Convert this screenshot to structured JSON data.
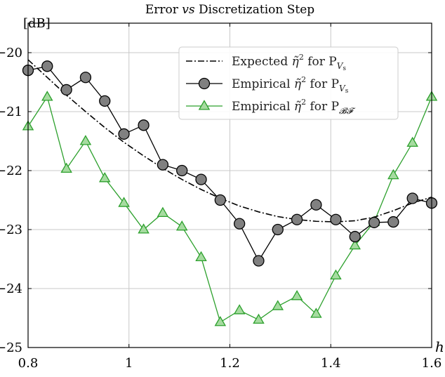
{
  "chart_data": {
    "type": "line",
    "title_parts": {
      "before": "Error ",
      "italic": "vs",
      "after": " Discretization Step"
    },
    "xlabel": "h",
    "ylabel": "[dB]",
    "xlim": [
      0.8,
      1.6
    ],
    "ylim": [
      -25,
      -19.5
    ],
    "grid": true,
    "legend_position": "top-right",
    "x_ticks": [
      0.8,
      1.0,
      1.2,
      1.4,
      1.6
    ],
    "x_tick_labels": [
      "0.8",
      "1",
      "1.2",
      "1.4",
      "1.6"
    ],
    "y_ticks": [
      -20,
      -21,
      -22,
      -23,
      -24,
      -25
    ],
    "y_tick_labels": [
      "−20",
      "−21",
      "−22",
      "−23",
      "−24",
      "−25"
    ],
    "x": [
      0.8,
      0.838,
      0.876,
      0.914,
      0.952,
      0.99,
      1.029,
      1.067,
      1.105,
      1.143,
      1.181,
      1.219,
      1.257,
      1.295,
      1.333,
      1.371,
      1.41,
      1.448,
      1.486,
      1.524,
      1.562,
      1.6
    ],
    "series": [
      {
        "name": "Expected η̃² for P_Vs",
        "legend_label": {
          "prefix": "Expected ",
          "eta": "η̃",
          "sup": "2",
          "mid": " for P",
          "sub": "Vs",
          "sub_kind": "V",
          "sub_small": "s"
        },
        "style": "dashdot",
        "color": "#000000",
        "marker": "none",
        "values": [
          -20.12,
          -20.42,
          -20.72,
          -21.0,
          -21.27,
          -21.52,
          -21.75,
          -21.96,
          -22.15,
          -22.32,
          -22.47,
          -22.6,
          -22.7,
          -22.78,
          -22.83,
          -22.86,
          -22.87,
          -22.85,
          -22.79,
          -22.68,
          -22.55,
          -22.45
        ]
      },
      {
        "name": "Empirical η̃² for P_Vs",
        "legend_label": {
          "prefix": "Empirical ",
          "eta": "η̃",
          "sup": "2",
          "mid": " for P",
          "sub": "Vs",
          "sub_kind": "V",
          "sub_small": "s"
        },
        "style": "solid",
        "color": "#000000",
        "marker": "circle",
        "marker_fill": "#808080",
        "values": [
          -20.3,
          -20.23,
          -20.63,
          -20.42,
          -20.82,
          -21.38,
          -21.23,
          -21.9,
          -22.0,
          -22.15,
          -22.5,
          -22.9,
          -23.53,
          -23.0,
          -22.83,
          -22.58,
          -22.83,
          -23.12,
          -22.88,
          -22.87,
          -22.47,
          -22.55
        ]
      },
      {
        "name": "Empirical η̃² for P_BF",
        "legend_label": {
          "prefix": "Empirical ",
          "eta": "η̃",
          "sup": "2",
          "mid": " for P",
          "sub": "𝓑𝓕",
          "sub_kind": "BF",
          "sub_small": ""
        },
        "style": "solid",
        "color": "#2ca02c",
        "marker": "triangle",
        "marker_fill": "#a6dba0",
        "values": [
          -21.25,
          -20.75,
          -21.97,
          -21.5,
          -22.13,
          -22.55,
          -23.0,
          -22.72,
          -22.95,
          -23.47,
          -24.57,
          -24.37,
          -24.53,
          -24.3,
          -24.13,
          -24.43,
          -23.78,
          -23.27,
          -22.87,
          -22.08,
          -21.53,
          -20.75
        ]
      }
    ]
  }
}
